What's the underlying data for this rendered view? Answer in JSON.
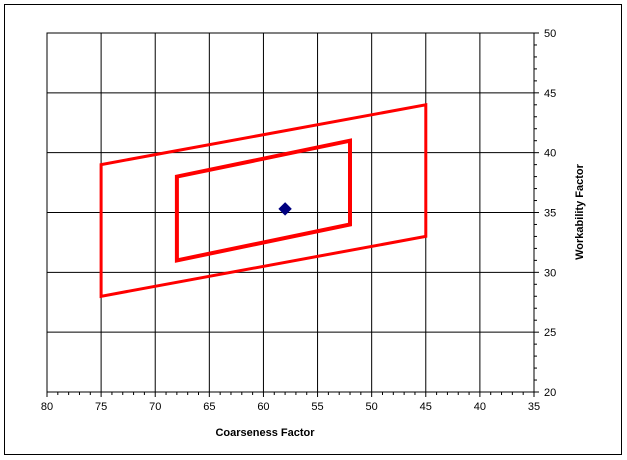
{
  "chart_data": {
    "type": "scatter",
    "title": "",
    "xlabel": "Coarseness Factor",
    "ylabel": "Workability Factor",
    "xlim": [
      80,
      35
    ],
    "ylim": [
      20,
      50
    ],
    "x_reversed": true,
    "y_axis_side": "right",
    "grid": true,
    "legend": "none",
    "x_ticks": [
      "80",
      "75",
      "70",
      "65",
      "60",
      "55",
      "50",
      "45",
      "40",
      "35"
    ],
    "y_ticks": [
      "20",
      "25",
      "30",
      "35",
      "40",
      "45",
      "50"
    ],
    "colors": {
      "boundary": "#ff0000",
      "point": "#000080",
      "grid": "#000000"
    },
    "series": [
      {
        "style": "polygon",
        "points": [
          [
            75,
            28
          ],
          [
            75,
            39
          ],
          [
            45,
            44
          ],
          [
            45,
            33
          ]
        ]
      },
      {
        "style": "polygon",
        "points": [
          [
            68,
            31
          ],
          [
            68,
            38
          ],
          [
            52,
            41
          ],
          [
            52,
            34
          ]
        ]
      },
      {
        "style": "marker",
        "points": [
          [
            58,
            35.3
          ]
        ]
      }
    ]
  }
}
